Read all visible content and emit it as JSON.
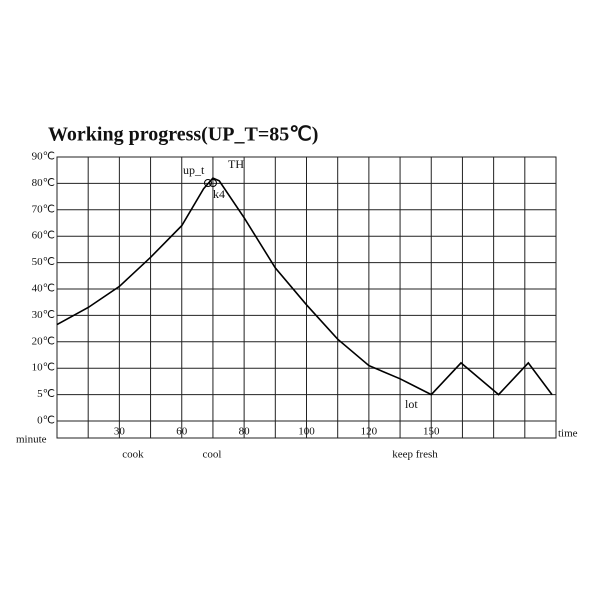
{
  "title": "Working progress(UP_T=85℃)",
  "chart_data": {
    "type": "line",
    "x_label": "time",
    "x_unit_label": "minute",
    "x": [
      0,
      15,
      30,
      45,
      60,
      67,
      70,
      72,
      80,
      90,
      100,
      110,
      120,
      135,
      150,
      165,
      184,
      199,
      211
    ],
    "series": [
      {
        "color": "#000000",
        "values": [
          26.5,
          33,
          41,
          52,
          64,
          78,
          82,
          81,
          67,
          48,
          34,
          21,
          11,
          8,
          5,
          12,
          5,
          12,
          5
        ]
      }
    ],
    "xlim": [
      0,
      213
    ],
    "xticks": [
      30,
      60,
      80,
      100,
      120,
      150
    ],
    "ylim": [
      0,
      90
    ],
    "yticks": [
      {
        "value": 90,
        "label": "90℃"
      },
      {
        "value": 80,
        "label": "80℃"
      },
      {
        "value": 70,
        "label": "70℃"
      },
      {
        "value": 60,
        "label": "60℃"
      },
      {
        "value": 50,
        "label": "50℃"
      },
      {
        "value": 40,
        "label": "40℃"
      },
      {
        "value": 30,
        "label": "30℃"
      },
      {
        "value": 20,
        "label": "20℃"
      },
      {
        "value": 10,
        "label": "10℃"
      },
      {
        "value": 5,
        "label": "5℃"
      },
      {
        "value": 0,
        "label": "0℃"
      }
    ],
    "grid": true,
    "annotations": [
      "up_t",
      "TH",
      "k4",
      "lot"
    ],
    "phases": [
      "cook",
      "cool",
      "keep fresh"
    ]
  }
}
